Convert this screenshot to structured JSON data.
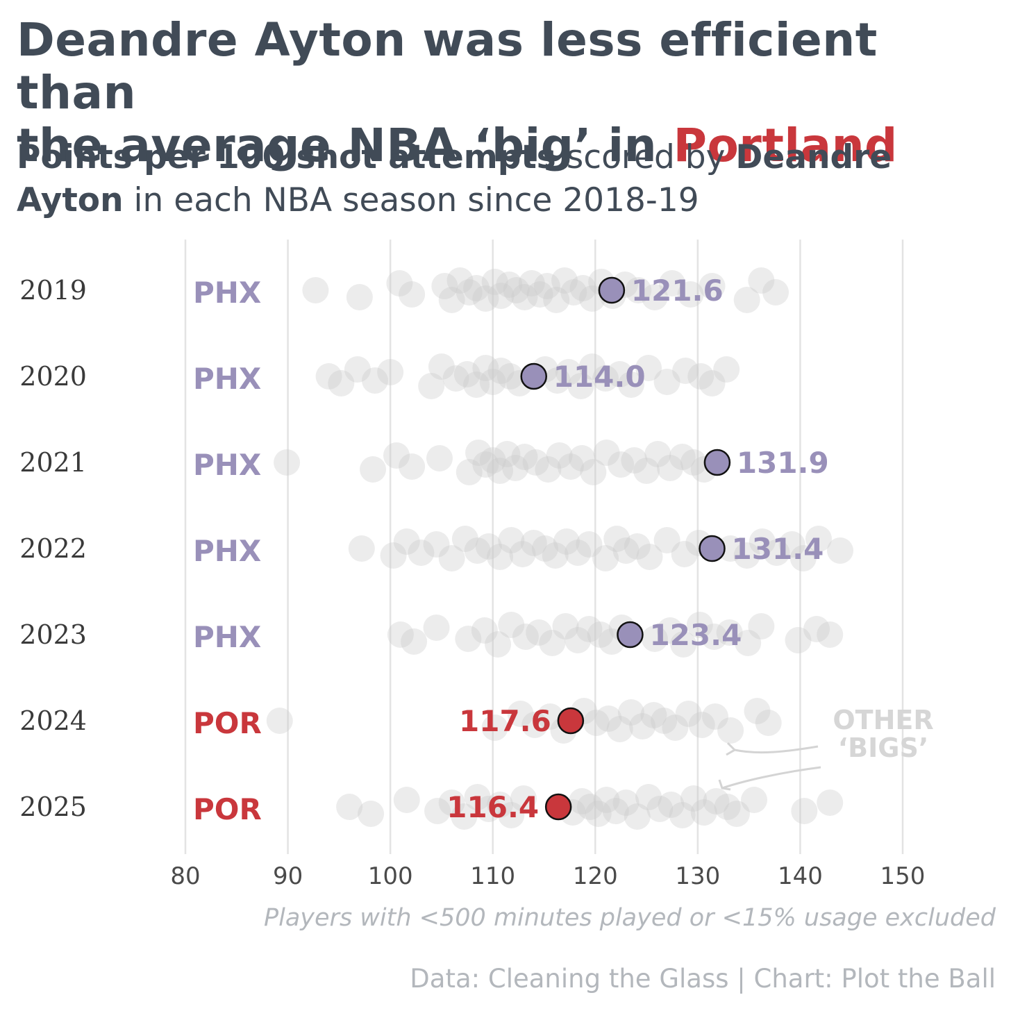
{
  "title": {
    "line1": "Deandre Ayton was less efficient than",
    "line2_pre": "the average NBA ‘big’ in ",
    "line2_highlight": "Portland"
  },
  "subtitle": {
    "bold1": "Points per 100 shot attempts",
    "text1": " scored by ",
    "bold2": "Deandre Ayton",
    "text2": " in each NBA season since 2018-19"
  },
  "note": "Players with <500 minutes played or <15% usage excluded",
  "source": "Data: Cleaning the Glass | Chart: Plot the Ball",
  "colors": {
    "phx": "#9990b9",
    "por": "#c9373c",
    "others": "#c8c8c8",
    "text": "#414b57",
    "muted": "#b3b7bc"
  },
  "chart_data": {
    "type": "scatter",
    "x_ticks": [
      80,
      90,
      100,
      110,
      120,
      130,
      140,
      150
    ],
    "xlim": [
      80,
      150
    ],
    "grid": "vertical",
    "annotation": "OTHER ‘BIGS’",
    "seasons": [
      {
        "year": "2019",
        "team": "PHX",
        "ayton": 121.6,
        "label": "121.6",
        "label_side": "right",
        "others": [
          92.7,
          97.0,
          100.9,
          102.1,
          105.3,
          106.0,
          106.8,
          107.7,
          108.4,
          109.3,
          110.2,
          110.8,
          111.6,
          112.3,
          113.1,
          113.8,
          114.6,
          115.3,
          116.2,
          117.0,
          117.9,
          118.8,
          119.7,
          120.6,
          121.7,
          122.9,
          124.2,
          125.8,
          127.5,
          129.3,
          131.4,
          134.8,
          136.2,
          137.6
        ]
      },
      {
        "year": "2020",
        "team": "PHX",
        "ayton": 114.0,
        "label": "114.0",
        "label_side": "right",
        "others": [
          94.0,
          95.2,
          96.8,
          98.5,
          100.0,
          104.0,
          105.0,
          106.4,
          107.5,
          108.4,
          109.3,
          110.0,
          110.8,
          111.7,
          112.6,
          115.1,
          116.3,
          117.4,
          118.6,
          119.7,
          121.0,
          122.4,
          123.5,
          125.2,
          127.0,
          128.8,
          130.3,
          131.4,
          132.8
        ]
      },
      {
        "year": "2021",
        "team": "PHX",
        "ayton": 131.9,
        "label": "131.9",
        "label_side": "right",
        "others": [
          89.9,
          98.3,
          100.6,
          102.1,
          104.8,
          107.7,
          108.6,
          109.3,
          110.0,
          110.7,
          111.4,
          112.2,
          113.1,
          114.2,
          115.4,
          116.5,
          117.6,
          118.7,
          119.8,
          121.1,
          122.5,
          123.8,
          125.0,
          126.1,
          127.3,
          128.5,
          129.6,
          130.6
        ]
      },
      {
        "year": "2022",
        "team": "PHX",
        "ayton": 131.4,
        "label": "131.4",
        "label_side": "right",
        "others": [
          97.2,
          100.3,
          101.6,
          103.0,
          104.5,
          106.0,
          107.3,
          108.5,
          109.6,
          110.7,
          111.8,
          112.9,
          114.0,
          115.1,
          116.1,
          117.2,
          118.3,
          119.4,
          121.0,
          122.1,
          123.0,
          124.1,
          125.3,
          127.0,
          128.7,
          130.1,
          133.2,
          134.8,
          136.3,
          137.7,
          139.2,
          140.3,
          141.8,
          143.9
        ]
      },
      {
        "year": "2023",
        "team": "PHX",
        "ayton": 123.4,
        "label": "123.4",
        "label_side": "right",
        "others": [
          101.0,
          102.3,
          104.5,
          107.6,
          109.2,
          110.5,
          111.8,
          113.2,
          114.5,
          115.8,
          117.1,
          118.3,
          119.4,
          120.5,
          121.6,
          122.6,
          125.8,
          127.3,
          128.6,
          130.2,
          131.6,
          133.1,
          134.9,
          136.2,
          139.8,
          141.6,
          142.9
        ]
      },
      {
        "year": "2024",
        "team": "POR",
        "ayton": 117.6,
        "label": "117.6",
        "label_side": "left",
        "others": [
          89.2,
          110.2,
          112.7,
          114.1,
          115.6,
          116.9,
          118.9,
          120.1,
          121.3,
          122.4,
          123.5,
          124.6,
          125.7,
          126.7,
          127.8,
          129.1,
          130.4,
          131.7,
          133.2,
          135.8,
          136.9
        ]
      },
      {
        "year": "2025",
        "team": "POR",
        "ayton": 116.4,
        "label": "116.4",
        "label_side": "left",
        "others": [
          96.0,
          98.1,
          101.6,
          104.6,
          106.0,
          107.2,
          108.5,
          109.6,
          110.7,
          111.8,
          113.0,
          117.8,
          118.7,
          119.5,
          120.3,
          121.1,
          122.0,
          123.0,
          124.1,
          125.2,
          126.3,
          127.4,
          128.5,
          129.6,
          130.6,
          131.8,
          132.9,
          133.8,
          135.5,
          140.4,
          142.9
        ]
      }
    ]
  }
}
